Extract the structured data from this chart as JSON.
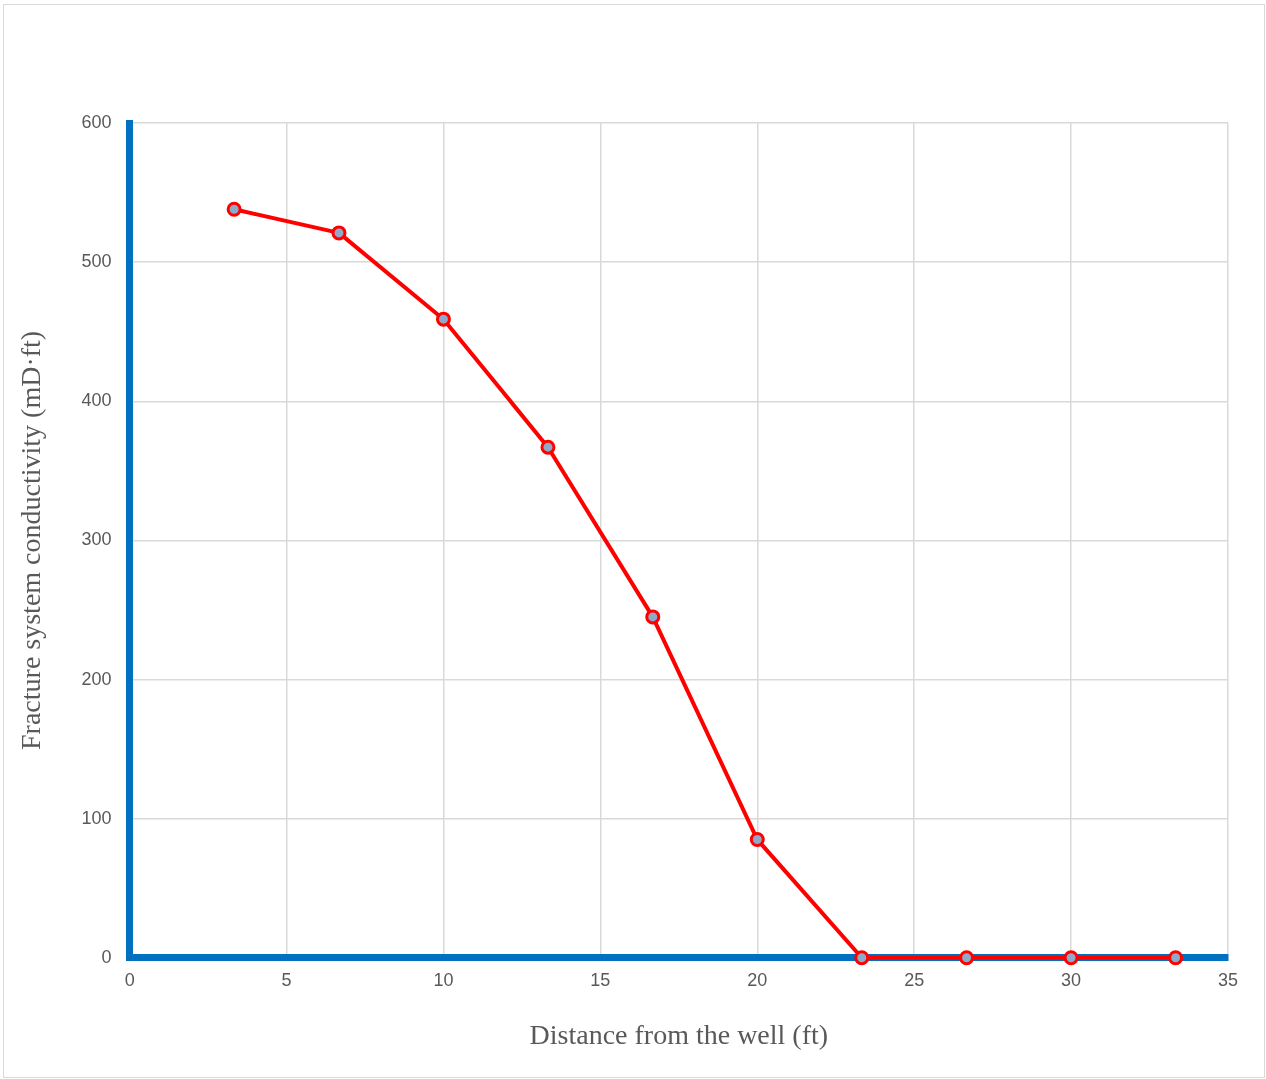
{
  "chart_data": {
    "type": "line",
    "xlabel": "Distance from the well (ft)",
    "ylabel": "Fracture system conductivity (mD·ft)",
    "x": [
      3.33,
      6.67,
      10,
      13.33,
      16.67,
      20,
      23.33,
      26.67,
      30,
      33.33
    ],
    "series": [
      {
        "color": "#ff0000",
        "values": [
          538,
          521,
          459,
          367,
          245,
          85,
          0,
          0,
          0,
          0
        ]
      }
    ],
    "xlim": [
      0,
      35
    ],
    "xticks": [
      0,
      5,
      10,
      15,
      20,
      25,
      30,
      35
    ],
    "ylim": [
      0,
      600
    ],
    "yticks": [
      0,
      100,
      200,
      300,
      400,
      500,
      600
    ],
    "grid": true,
    "legend": false,
    "marker": "circle",
    "line_style": "solid"
  }
}
